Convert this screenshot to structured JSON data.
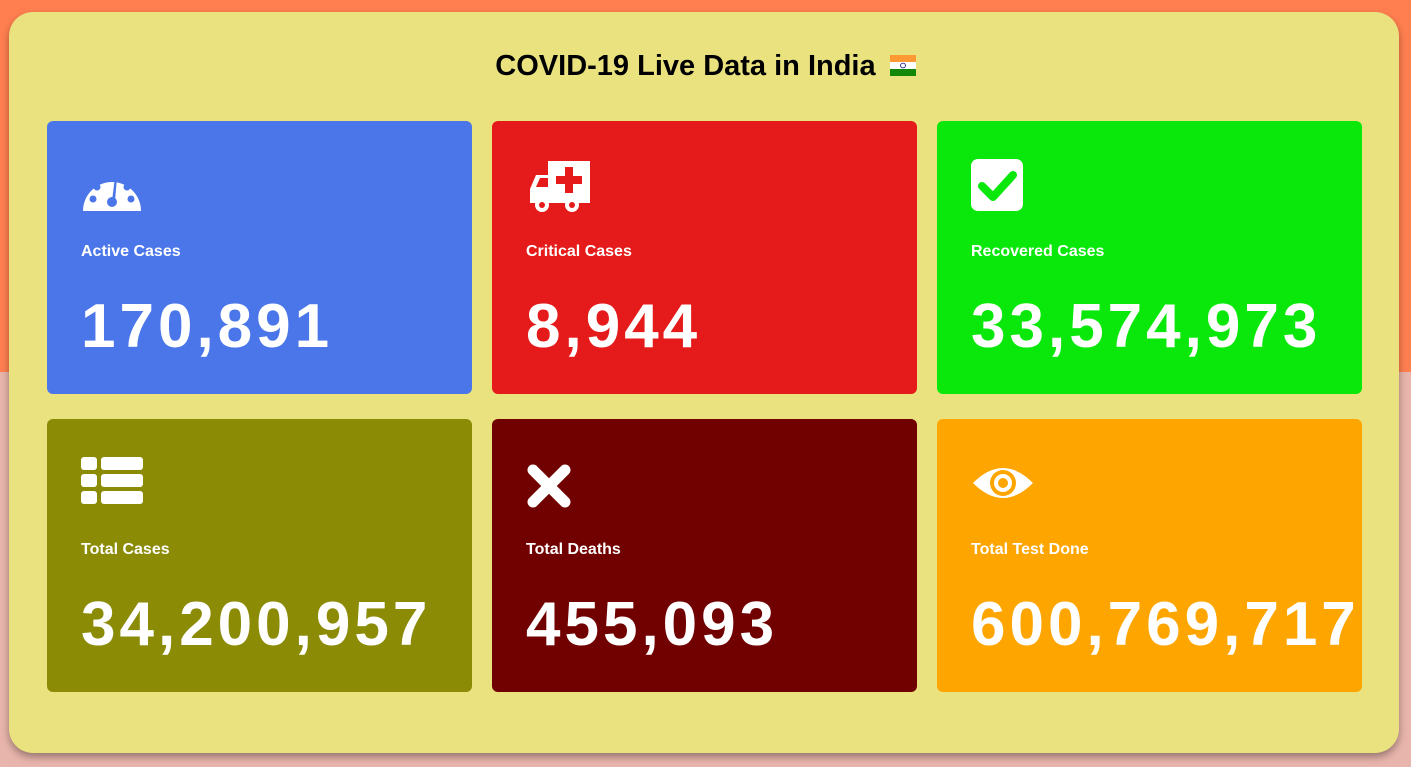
{
  "header": {
    "title": "COVID-19 Live Data in India",
    "flag_icon": "india-flag-icon"
  },
  "cards": [
    {
      "label": "Active Cases",
      "value": "170,891",
      "color": "#4a76ea",
      "icon": "dashboard-gauge-icon"
    },
    {
      "label": "Critical Cases",
      "value": "8,944",
      "color": "#e51a1a",
      "icon": "ambulance-icon"
    },
    {
      "label": "Recovered Cases",
      "value": "33,574,973",
      "color": "#09e80a",
      "icon": "check-square-icon"
    },
    {
      "label": "Total Cases",
      "value": "34,200,957",
      "color": "#8b8b06",
      "icon": "list-icon"
    },
    {
      "label": "Total Deaths",
      "value": "455,093",
      "color": "#710000",
      "icon": "times-icon"
    },
    {
      "label": "Total Test Done",
      "value": "600,769,717",
      "color": "#ffa500",
      "icon": "eye-icon"
    }
  ]
}
